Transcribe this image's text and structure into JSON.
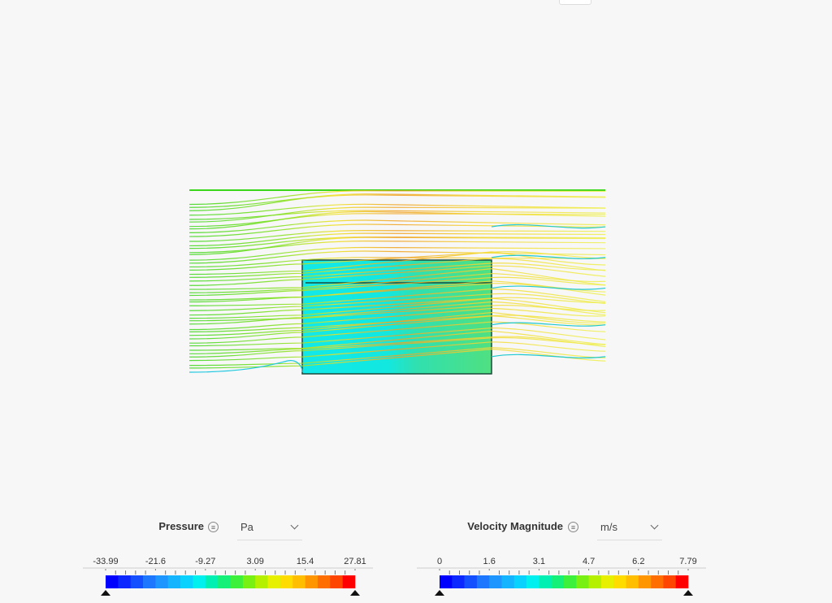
{
  "legends": [
    {
      "title": "Pressure",
      "unit": "Pa",
      "ticks": [
        -33.99,
        -21.6,
        -9.27,
        3.09,
        15.4,
        27.81
      ]
    },
    {
      "title": "Velocity Magnitude",
      "unit": "m/s",
      "ticks": [
        0,
        1.6,
        3.1,
        4.7,
        6.2,
        7.79
      ]
    }
  ]
}
